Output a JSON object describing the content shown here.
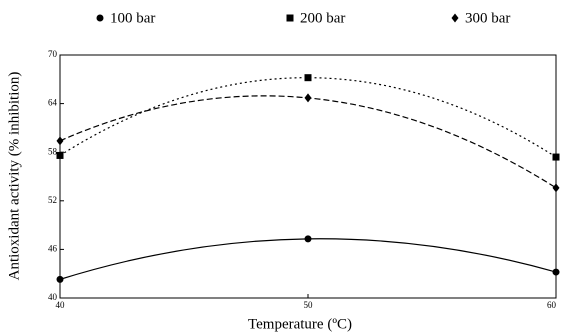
{
  "chart_data": {
    "type": "line",
    "x_label": "Temperature (ºC)",
    "y_label": "Antioxidant activity (% inhibition)",
    "x": [
      40,
      50,
      60
    ],
    "series": [
      {
        "name": "100 bar",
        "color": "#000000",
        "marker": "circle",
        "dash": "solid",
        "values": [
          42.3,
          47.3,
          43.2
        ]
      },
      {
        "name": "200 bar",
        "color": "#000000",
        "marker": "square",
        "dash": "dotted",
        "values": [
          57.6,
          67.2,
          57.4
        ]
      },
      {
        "name": "300 bar",
        "color": "#000000",
        "marker": "diamond",
        "dash": "dashed",
        "values": [
          59.4,
          64.7,
          53.6
        ]
      }
    ],
    "xlim": [
      40,
      60
    ],
    "xticks": [
      40,
      50,
      60
    ],
    "ylim": [
      40,
      70
    ],
    "yticks": [
      40,
      46,
      52,
      58,
      64,
      70
    ],
    "grid": false
  }
}
